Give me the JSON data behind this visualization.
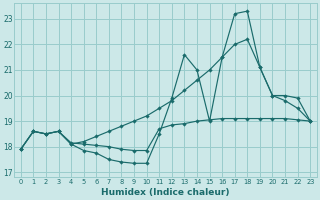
{
  "xlabel": "Humidex (Indice chaleur)",
  "bg_color": "#cce8e8",
  "grid_color": "#99cccc",
  "line_color": "#1a6b6b",
  "xlim": [
    -0.5,
    23.5
  ],
  "ylim": [
    16.8,
    23.6
  ],
  "yticks": [
    17,
    18,
    19,
    20,
    21,
    22,
    23
  ],
  "xticks": [
    0,
    1,
    2,
    3,
    4,
    5,
    6,
    7,
    8,
    9,
    10,
    11,
    12,
    13,
    14,
    15,
    16,
    17,
    18,
    19,
    20,
    21,
    22,
    23
  ],
  "line1_x": [
    0,
    1,
    2,
    3,
    4,
    5,
    6,
    7,
    8,
    9,
    10,
    11,
    12,
    13,
    14,
    15,
    16,
    17,
    18,
    19,
    20,
    21,
    22,
    23
  ],
  "line1_y": [
    17.9,
    18.6,
    18.5,
    18.6,
    18.1,
    17.85,
    17.75,
    17.5,
    17.4,
    17.35,
    17.35,
    18.5,
    19.9,
    21.6,
    21.0,
    19.0,
    21.5,
    23.2,
    23.3,
    21.1,
    20.0,
    20.0,
    19.9,
    19.0
  ],
  "line2_x": [
    0,
    1,
    2,
    3,
    4,
    5,
    6,
    7,
    8,
    9,
    10,
    11,
    12,
    13,
    14,
    15,
    16,
    17,
    18,
    19,
    20,
    21,
    22,
    23
  ],
  "line2_y": [
    17.9,
    18.6,
    18.5,
    18.6,
    18.15,
    18.1,
    18.05,
    18.0,
    17.9,
    17.85,
    17.85,
    18.7,
    18.85,
    18.9,
    19.0,
    19.05,
    19.1,
    19.1,
    19.1,
    19.1,
    19.1,
    19.1,
    19.05,
    19.0
  ],
  "line3_x": [
    0,
    1,
    2,
    3,
    4,
    5,
    6,
    7,
    8,
    9,
    10,
    11,
    12,
    13,
    14,
    15,
    16,
    17,
    18,
    19,
    20,
    21,
    22,
    23
  ],
  "line3_y": [
    17.9,
    18.6,
    18.5,
    18.6,
    18.1,
    18.2,
    18.4,
    18.6,
    18.8,
    19.0,
    19.2,
    19.5,
    19.8,
    20.2,
    20.6,
    21.0,
    21.5,
    22.0,
    22.2,
    21.1,
    20.0,
    19.8,
    19.5,
    19.0
  ]
}
